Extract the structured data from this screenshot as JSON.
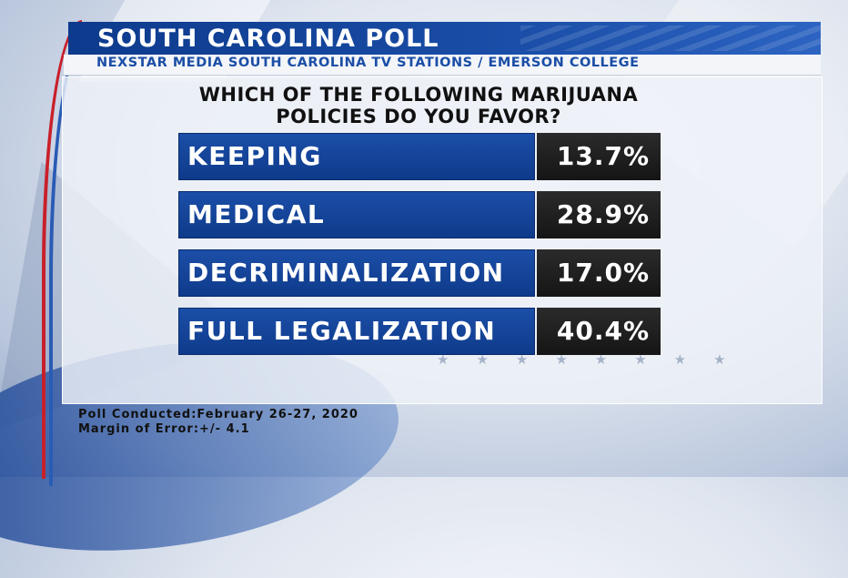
{
  "header": {
    "title": "SOUTH CAROLINA POLL",
    "subtitle": "NEXSTAR MEDIA SOUTH CAROLINA TV STATIONS / EMERSON COLLEGE"
  },
  "question": {
    "line1": "WHICH OF THE FOLLOWING MARIJUANA",
    "line2": "POLICIES DO YOU FAVOR?"
  },
  "chart_data": {
    "type": "table",
    "title": "WHICH OF THE FOLLOWING MARIJUANA POLICIES DO YOU FAVOR?",
    "categories": [
      "KEEPING",
      "MEDICAL",
      "DECRIMINALIZATION",
      "FULL LEGALIZATION"
    ],
    "values": [
      13.7,
      28.9,
      17.0,
      40.4
    ],
    "value_labels": [
      "13.7%",
      "28.9%",
      "17.0%",
      "40.4%"
    ]
  },
  "footer": {
    "conducted": "Poll Conducted:February 26-27, 2020",
    "margin": "Margin of Error:+/- 4.1"
  },
  "colors": {
    "primary_blue": "#0e3a8a",
    "value_black": "#1a1a1a",
    "accent_red": "#c8202a"
  }
}
